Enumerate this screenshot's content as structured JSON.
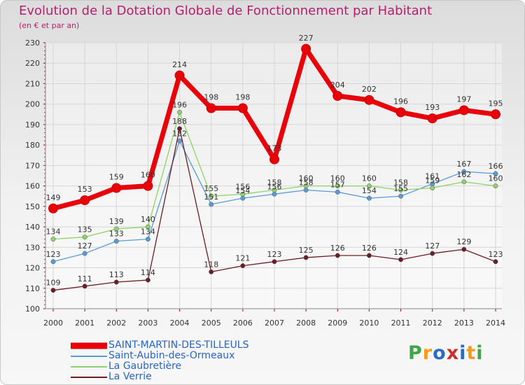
{
  "header": {
    "title": "Evolution de la Dotation Globale de Fonctionnement par Habitant",
    "subtitle": "(en € et par an)"
  },
  "brand": {
    "letters": [
      "P",
      "r",
      "o",
      "x",
      "i",
      "t",
      "i"
    ],
    "colors": [
      "#3fa44a",
      "#f39b1a",
      "#2a6cc4",
      "#c8312d",
      "#2a6cc4",
      "#f39b1a",
      "#3fa44a"
    ]
  },
  "chart_data": {
    "type": "line",
    "x": [
      "2000",
      "2001",
      "2002",
      "2003",
      "2004",
      "2005",
      "2006",
      "2007",
      "2008",
      "2009",
      "2010",
      "2011",
      "2012",
      "2013",
      "2014"
    ],
    "ylim": [
      100,
      230
    ],
    "yticks": [
      100,
      110,
      120,
      130,
      140,
      150,
      160,
      170,
      180,
      190,
      200,
      210,
      220,
      230
    ],
    "grid": true,
    "legend_position": "bottom-left",
    "series": [
      {
        "name": "SAINT-MARTIN-DES-TILLEULS",
        "color": "#e8000b",
        "values": [
          149,
          153,
          159,
          160,
          214,
          198,
          198,
          173,
          227,
          204,
          202,
          196,
          193,
          197,
          195
        ],
        "labels": [
          "149",
          "153",
          "159",
          "160",
          "214",
          "198",
          "198",
          "173",
          "227",
          "204",
          "202",
          "196",
          "193",
          "197",
          "195"
        ]
      },
      {
        "name": "Saint-Aubin-des-Ormeaux",
        "color": "#5b9bd5",
        "values": [
          123,
          127,
          133,
          134,
          182,
          151,
          154,
          156,
          158,
          157,
          154,
          155,
          161,
          167,
          166
        ],
        "labels": [
          "123",
          "127",
          "133",
          "134",
          "182",
          "151",
          "154",
          "156",
          "158",
          "157",
          "154",
          "155",
          "161",
          "167",
          "166"
        ]
      },
      {
        "name": "La Gaubretière",
        "color": "#8fd16b",
        "values": [
          134,
          135,
          139,
          140,
          196,
          155,
          156,
          158,
          160,
          160,
          160,
          158,
          159,
          162,
          160
        ],
        "labels": [
          "134",
          "135",
          "139",
          "140",
          "196",
          "155",
          "156",
          "158",
          "160",
          "160",
          "160",
          "158",
          "159",
          "162",
          "160"
        ]
      },
      {
        "name": "La Verrie",
        "color": "#6b1d26",
        "values": [
          109,
          111,
          113,
          114,
          188,
          118,
          121,
          123,
          125,
          126,
          126,
          124,
          127,
          129,
          123
        ],
        "labels": [
          "109",
          "111",
          "113",
          "114",
          "188",
          "118",
          "121",
          "123",
          "125",
          "126",
          "126",
          "124",
          "127",
          "129",
          "123"
        ]
      }
    ]
  }
}
